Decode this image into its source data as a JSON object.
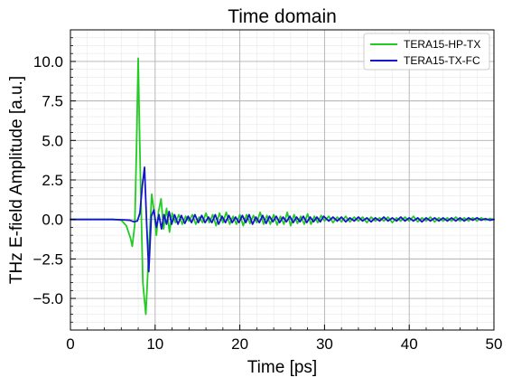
{
  "chart_data": {
    "type": "line",
    "title": "Time domain",
    "xlabel": "Time [ps]",
    "ylabel": "THz E-field Amplitude [a.u.]",
    "xlim": [
      0,
      50
    ],
    "ylim": [
      -7,
      12
    ],
    "x_ticks": [
      0,
      10,
      20,
      30,
      40,
      50
    ],
    "x_tick_labels": [
      "0",
      "10",
      "20",
      "30",
      "40",
      "50"
    ],
    "y_ticks": [
      -5.0,
      -2.5,
      0.0,
      2.5,
      5.0,
      7.5,
      10.0
    ],
    "y_tick_labels": [
      "−5.0",
      "−2.5",
      "0.0",
      "2.5",
      "5.0",
      "7.5",
      "10.0"
    ],
    "grid": true,
    "minor_grid": true,
    "legend_position": "top-right",
    "series": [
      {
        "name": "TERA15-HP-TX",
        "color": "#22cc22",
        "x": [
          0,
          5,
          6,
          6.6,
          7.1,
          7.3,
          7.6,
          7.8,
          8.0,
          8.25,
          8.55,
          8.9,
          9.3,
          9.6,
          9.9,
          10.15,
          10.4,
          10.7,
          11.0,
          11.35,
          11.7,
          12.0,
          12.4,
          12.8,
          13.2,
          13.6,
          14.0,
          14.4,
          14.8,
          15.2,
          15.6,
          16.0,
          16.4,
          16.8,
          17.2,
          17.6,
          18.0,
          18.4,
          18.8,
          19.2,
          19.6,
          20.0,
          20.4,
          20.8,
          21.2,
          21.6,
          22.0,
          22.4,
          22.8,
          23.2,
          23.6,
          24.0,
          24.4,
          24.8,
          25.2,
          25.6,
          26.0,
          26.4,
          26.8,
          27.2,
          27.6,
          28.0,
          28.4,
          28.8,
          29.2,
          29.6,
          30.0,
          30.5,
          31.0,
          31.5,
          32.0,
          32.5,
          33.0,
          33.5,
          34.0,
          34.5,
          35.0,
          35.5,
          36.0,
          36.5,
          37.0,
          37.5,
          38.0,
          38.5,
          39.0,
          39.5,
          40.0,
          40.5,
          41.0,
          41.5,
          42.0,
          42.5,
          43.0,
          43.5,
          44.0,
          44.5,
          45.0,
          45.5,
          46.0,
          46.5,
          47.0,
          47.5,
          48.0,
          48.5,
          49.0,
          49.5,
          50.0
        ],
        "y": [
          0.0,
          0.0,
          -0.05,
          -0.4,
          -1.2,
          -1.7,
          -0.3,
          4.5,
          10.2,
          3.0,
          -4.0,
          -6.0,
          -1.5,
          1.6,
          0.4,
          -1.0,
          0.5,
          1.3,
          -0.6,
          0.7,
          -0.8,
          0.4,
          -0.2,
          0.3,
          -0.3,
          0.2,
          -0.1,
          0.3,
          -0.3,
          0.15,
          -0.2,
          0.4,
          -0.2,
          0.3,
          -0.4,
          0.4,
          -0.2,
          0.45,
          -0.3,
          0.2,
          -0.3,
          0.3,
          -0.4,
          0.3,
          -0.25,
          0.25,
          -0.2,
          0.45,
          -0.3,
          0.25,
          -0.3,
          0.3,
          -0.35,
          0.2,
          -0.3,
          0.45,
          -0.4,
          0.3,
          -0.25,
          0.2,
          -0.3,
          0.35,
          -0.3,
          0.2,
          -0.2,
          0.25,
          -0.1,
          0.2,
          -0.2,
          0.15,
          -0.15,
          0.2,
          -0.15,
          0.15,
          -0.1,
          0.15,
          -0.2,
          0.15,
          -0.1,
          0.1,
          -0.1,
          0.15,
          -0.2,
          0.1,
          -0.1,
          0.15,
          -0.1,
          0.2,
          -0.15,
          0.1,
          -0.1,
          0.15,
          -0.15,
          0.1,
          -0.1,
          0.1,
          -0.1,
          0.15,
          -0.1,
          0.1,
          -0.1,
          0.1,
          -0.1,
          0.1,
          -0.05,
          0.05,
          0.0
        ]
      },
      {
        "name": "TERA15-TX-FC",
        "color": "#1515cc",
        "x": [
          0,
          5,
          6,
          7,
          7.5,
          7.9,
          8.2,
          8.5,
          8.75,
          9.0,
          9.25,
          9.55,
          9.85,
          10.15,
          10.45,
          10.75,
          11.05,
          11.35,
          11.65,
          11.95,
          12.3,
          12.7,
          13.1,
          13.5,
          13.9,
          14.3,
          14.7,
          15.1,
          15.5,
          15.9,
          16.3,
          16.7,
          17.1,
          17.5,
          17.9,
          18.3,
          18.7,
          19.1,
          19.5,
          19.9,
          20.3,
          20.7,
          21.1,
          21.5,
          21.9,
          22.3,
          22.7,
          23.1,
          23.5,
          23.9,
          24.3,
          24.7,
          25.1,
          25.5,
          25.9,
          26.3,
          26.7,
          27.1,
          27.5,
          27.9,
          28.3,
          28.7,
          29.1,
          29.5,
          29.9,
          30.5,
          31.0,
          31.5,
          32.0,
          32.5,
          33.0,
          33.5,
          34.0,
          34.5,
          35.0,
          35.5,
          36.0,
          36.5,
          37.0,
          37.5,
          38.0,
          38.5,
          39.0,
          39.5,
          40.0,
          40.5,
          41.0,
          41.5,
          42.0,
          42.5,
          43.0,
          43.5,
          44.0,
          44.5,
          45.0,
          45.5,
          46.0,
          46.5,
          47.0,
          47.5,
          48.0,
          48.5,
          49.0,
          49.5,
          50.0
        ],
        "y": [
          0.0,
          0.0,
          -0.02,
          -0.05,
          -0.15,
          -0.1,
          0.4,
          2.2,
          3.3,
          -0.3,
          -3.3,
          0.2,
          0.6,
          -0.5,
          0.3,
          -0.6,
          0.3,
          -0.3,
          0.5,
          -0.3,
          0.3,
          -0.3,
          0.25,
          -0.25,
          0.2,
          -0.2,
          0.3,
          -0.2,
          0.25,
          -0.2,
          0.15,
          -0.2,
          0.3,
          -0.3,
          0.2,
          -0.2,
          0.25,
          -0.2,
          0.15,
          -0.2,
          0.25,
          -0.2,
          0.3,
          -0.3,
          0.15,
          -0.2,
          0.25,
          -0.25,
          0.2,
          -0.15,
          0.2,
          -0.2,
          0.15,
          -0.15,
          0.2,
          -0.2,
          0.15,
          -0.15,
          0.2,
          -0.2,
          0.15,
          -0.15,
          0.15,
          -0.15,
          0.2,
          -0.1,
          0.15,
          -0.1,
          0.15,
          -0.15,
          0.1,
          -0.1,
          0.15,
          -0.1,
          0.1,
          -0.15,
          0.1,
          -0.1,
          0.15,
          -0.1,
          0.1,
          -0.1,
          0.15,
          -0.1,
          0.1,
          -0.1,
          0.1,
          -0.15,
          0.1,
          -0.1,
          0.1,
          -0.1,
          0.1,
          -0.1,
          0.1,
          -0.1,
          0.1,
          -0.1,
          0.1,
          -0.05,
          0.1,
          -0.05,
          0.05,
          -0.05,
          0.0
        ]
      }
    ]
  }
}
